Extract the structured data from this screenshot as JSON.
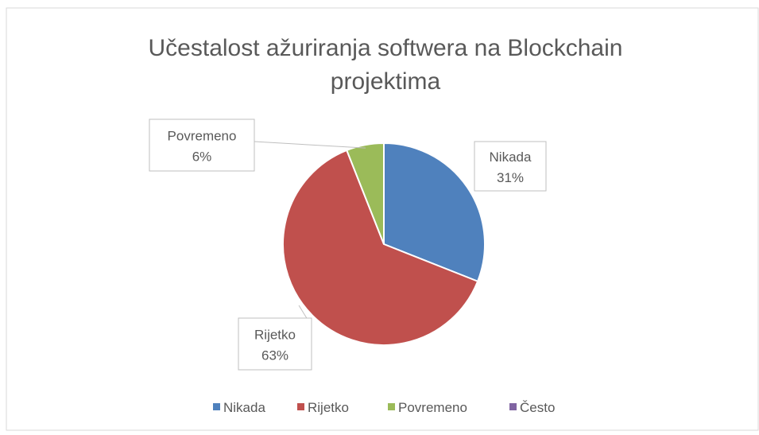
{
  "chart_data": {
    "type": "pie",
    "title": "Učestalost ažuriranja softwera na Blockchain projektima",
    "categories": [
      "Nikada",
      "Rijetko",
      "Povremeno",
      "Često"
    ],
    "values": [
      31,
      63,
      6,
      0
    ],
    "value_labels": [
      "31%",
      "63%",
      "6%",
      null
    ],
    "colors": [
      "#4f81bd",
      "#c0504d",
      "#9bbb59",
      "#8064a2"
    ],
    "legend": "bottom"
  }
}
